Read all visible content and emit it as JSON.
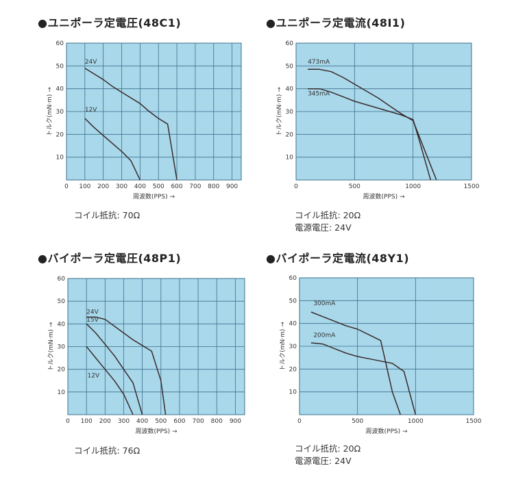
{
  "chart_data": [
    {
      "type": "line",
      "title": "●ユニポーラ定電圧(48C1)",
      "xlabel": "周波数(PPS) →",
      "ylabel": "トルク(mN·m) →",
      "xlim": [
        0,
        950
      ],
      "ylim": [
        0,
        60
      ],
      "xticks": [
        0,
        100,
        200,
        300,
        400,
        500,
        600,
        700,
        800,
        900
      ],
      "yticks": [
        10,
        20,
        30,
        40,
        50,
        60
      ],
      "xtick_labels": [
        "0",
        "100",
        "200",
        "300",
        "400",
        "500",
        "600",
        "700",
        "800",
        "900"
      ],
      "ytick_labels": [
        "10",
        "20",
        "30",
        "40",
        "50",
        "60"
      ],
      "grid": true,
      "notes": [
        "コイル抵抗: 70Ω"
      ],
      "series": [
        {
          "name": "24V",
          "label_at": [
            100,
            51
          ],
          "x": [
            100,
            150,
            200,
            250,
            300,
            350,
            400,
            450,
            500,
            550,
            600
          ],
          "y": [
            49,
            46.5,
            44,
            41,
            38.5,
            36,
            33.5,
            30,
            27,
            24.5,
            0
          ]
        },
        {
          "name": "12V",
          "label_at": [
            100,
            30
          ],
          "x": [
            100,
            150,
            200,
            250,
            300,
            350,
            400
          ],
          "y": [
            27,
            23,
            19.5,
            16,
            12.5,
            8.5,
            0
          ]
        }
      ]
    },
    {
      "type": "line",
      "title": "●ユニポーラ定電流(48I1)",
      "xlabel": "周波数(PPS) →",
      "ylabel": "トルク(mN·m) →",
      "xlim": [
        0,
        1500
      ],
      "ylim": [
        0,
        60
      ],
      "xticks": [
        0,
        500,
        1000,
        1500
      ],
      "yticks": [
        10,
        20,
        30,
        40,
        50,
        60
      ],
      "xtick_labels": [
        "0",
        "500",
        "1000",
        "1500"
      ],
      "ytick_labels": [
        "10",
        "20",
        "30",
        "40",
        "50",
        "60"
      ],
      "grid": true,
      "notes": [
        "コイル抵抗: 20Ω",
        "電源電圧: 24V"
      ],
      "series": [
        {
          "name": "473mA",
          "label_at": [
            100,
            51
          ],
          "x": [
            100,
            200,
            300,
            400,
            500,
            600,
            700,
            800,
            900,
            1000,
            1100,
            1200
          ],
          "y": [
            48.5,
            48.5,
            47.5,
            45,
            42,
            39,
            36,
            32.5,
            29,
            26,
            13,
            0
          ]
        },
        {
          "name": "345mA",
          "label_at": [
            100,
            37
          ],
          "x": [
            100,
            200,
            300,
            400,
            500,
            600,
            700,
            800,
            900,
            1000,
            1050,
            1150
          ],
          "y": [
            40,
            40,
            38.5,
            36.5,
            34.5,
            33,
            31.5,
            30,
            28.5,
            26.5,
            18,
            0
          ]
        }
      ]
    },
    {
      "type": "line",
      "title": "●バイポーラ定電圧(48P1)",
      "xlabel": "周波数(PPS) →",
      "ylabel": "トルク(mN·m) →",
      "xlim": [
        0,
        950
      ],
      "ylim": [
        0,
        60
      ],
      "xticks": [
        0,
        100,
        200,
        300,
        400,
        500,
        600,
        700,
        800,
        900
      ],
      "yticks": [
        10,
        20,
        30,
        40,
        50,
        60
      ],
      "xtick_labels": [
        "0",
        "100",
        "200",
        "300",
        "400",
        "500",
        "600",
        "700",
        "800",
        "900"
      ],
      "ytick_labels": [
        "10",
        "20",
        "30",
        "40",
        "50",
        "60"
      ],
      "grid": true,
      "notes": [
        "コイル抵抗: 76Ω"
      ],
      "series": [
        {
          "name": "24V",
          "label_at": [
            100,
            44.5
          ],
          "x": [
            100,
            150,
            200,
            250,
            300,
            350,
            400,
            450,
            500,
            525
          ],
          "y": [
            43,
            43,
            42,
            39,
            36,
            33,
            30.5,
            28,
            15,
            0
          ]
        },
        {
          "name": "15V",
          "label_at": [
            100,
            41
          ],
          "x": [
            100,
            150,
            200,
            250,
            300,
            350,
            400
          ],
          "y": [
            40,
            36,
            31,
            26,
            20,
            14,
            0
          ]
        },
        {
          "name": "12V",
          "label_at": [
            105,
            16.5
          ],
          "x": [
            100,
            150,
            200,
            250,
            300,
            350
          ],
          "y": [
            30,
            25,
            20,
            15,
            9,
            0
          ]
        }
      ]
    },
    {
      "type": "line",
      "title": "●バイポーラ定電流(48Y1)",
      "xlabel": "周波数(PPS) →",
      "ylabel": "トルク(mN·m) →",
      "xlim": [
        0,
        1500
      ],
      "ylim": [
        0,
        60
      ],
      "xticks": [
        0,
        500,
        1000,
        1500
      ],
      "yticks": [
        10,
        20,
        30,
        40,
        50,
        60
      ],
      "xtick_labels": [
        "0",
        "500",
        "1000",
        "1500"
      ],
      "ytick_labels": [
        "10",
        "20",
        "30",
        "40",
        "50",
        "60"
      ],
      "grid": true,
      "notes": [
        "コイル抵抗: 20Ω",
        "電源電圧: 24V"
      ],
      "series": [
        {
          "name": "300mA",
          "label_at": [
            120,
            48
          ],
          "x": [
            100,
            200,
            300,
            400,
            500,
            600,
            700,
            800,
            870
          ],
          "y": [
            45,
            43,
            41,
            39,
            37.5,
            35,
            32.5,
            10,
            0
          ]
        },
        {
          "name": "200mA",
          "label_at": [
            120,
            34
          ],
          "x": [
            100,
            200,
            300,
            400,
            500,
            600,
            700,
            800,
            900,
            1000
          ],
          "y": [
            31.5,
            31,
            29,
            27,
            25.5,
            24.5,
            23.5,
            22.5,
            19,
            0
          ]
        }
      ]
    }
  ]
}
